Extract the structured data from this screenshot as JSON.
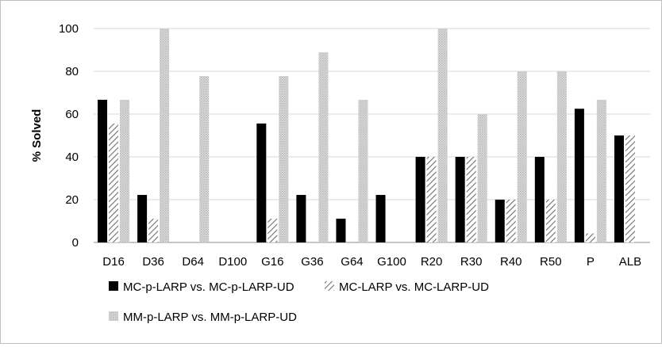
{
  "chart_data": {
    "type": "bar",
    "title": "",
    "xlabel": "",
    "ylabel": "% Solved",
    "ylim": [
      0,
      100
    ],
    "yticks": [
      0,
      20,
      40,
      60,
      80,
      100
    ],
    "grid": "horizontal",
    "legend_position": "bottom",
    "categories": [
      "D16",
      "D36",
      "D64",
      "D100",
      "G16",
      "G36",
      "G64",
      "G100",
      "R20",
      "R30",
      "R40",
      "R50",
      "P",
      "ALB"
    ],
    "series": [
      {
        "name": "MC-p-LARP vs. MC-p-LARP-UD",
        "style": "solid",
        "color": "#000000",
        "values": [
          66.7,
          22.2,
          0,
          0,
          55.6,
          22.2,
          11.1,
          22.2,
          40,
          40,
          20,
          40,
          62.5,
          50
        ]
      },
      {
        "name": "MC-LARP vs. MC-LARP-UD",
        "style": "diagonal-hatch",
        "color": "#7f7f7f",
        "values": [
          55.6,
          11.1,
          0,
          0,
          11.1,
          0,
          0,
          0,
          40,
          40,
          20,
          20,
          4.2,
          50
        ]
      },
      {
        "name": "MM-p-LARP vs. MM-p-LARP-UD",
        "style": "dotted-light",
        "color": "#d0d0d0",
        "values": [
          66.7,
          100,
          77.8,
          0,
          77.8,
          88.9,
          66.7,
          0,
          100,
          60,
          80,
          80,
          66.7,
          0
        ]
      }
    ]
  }
}
